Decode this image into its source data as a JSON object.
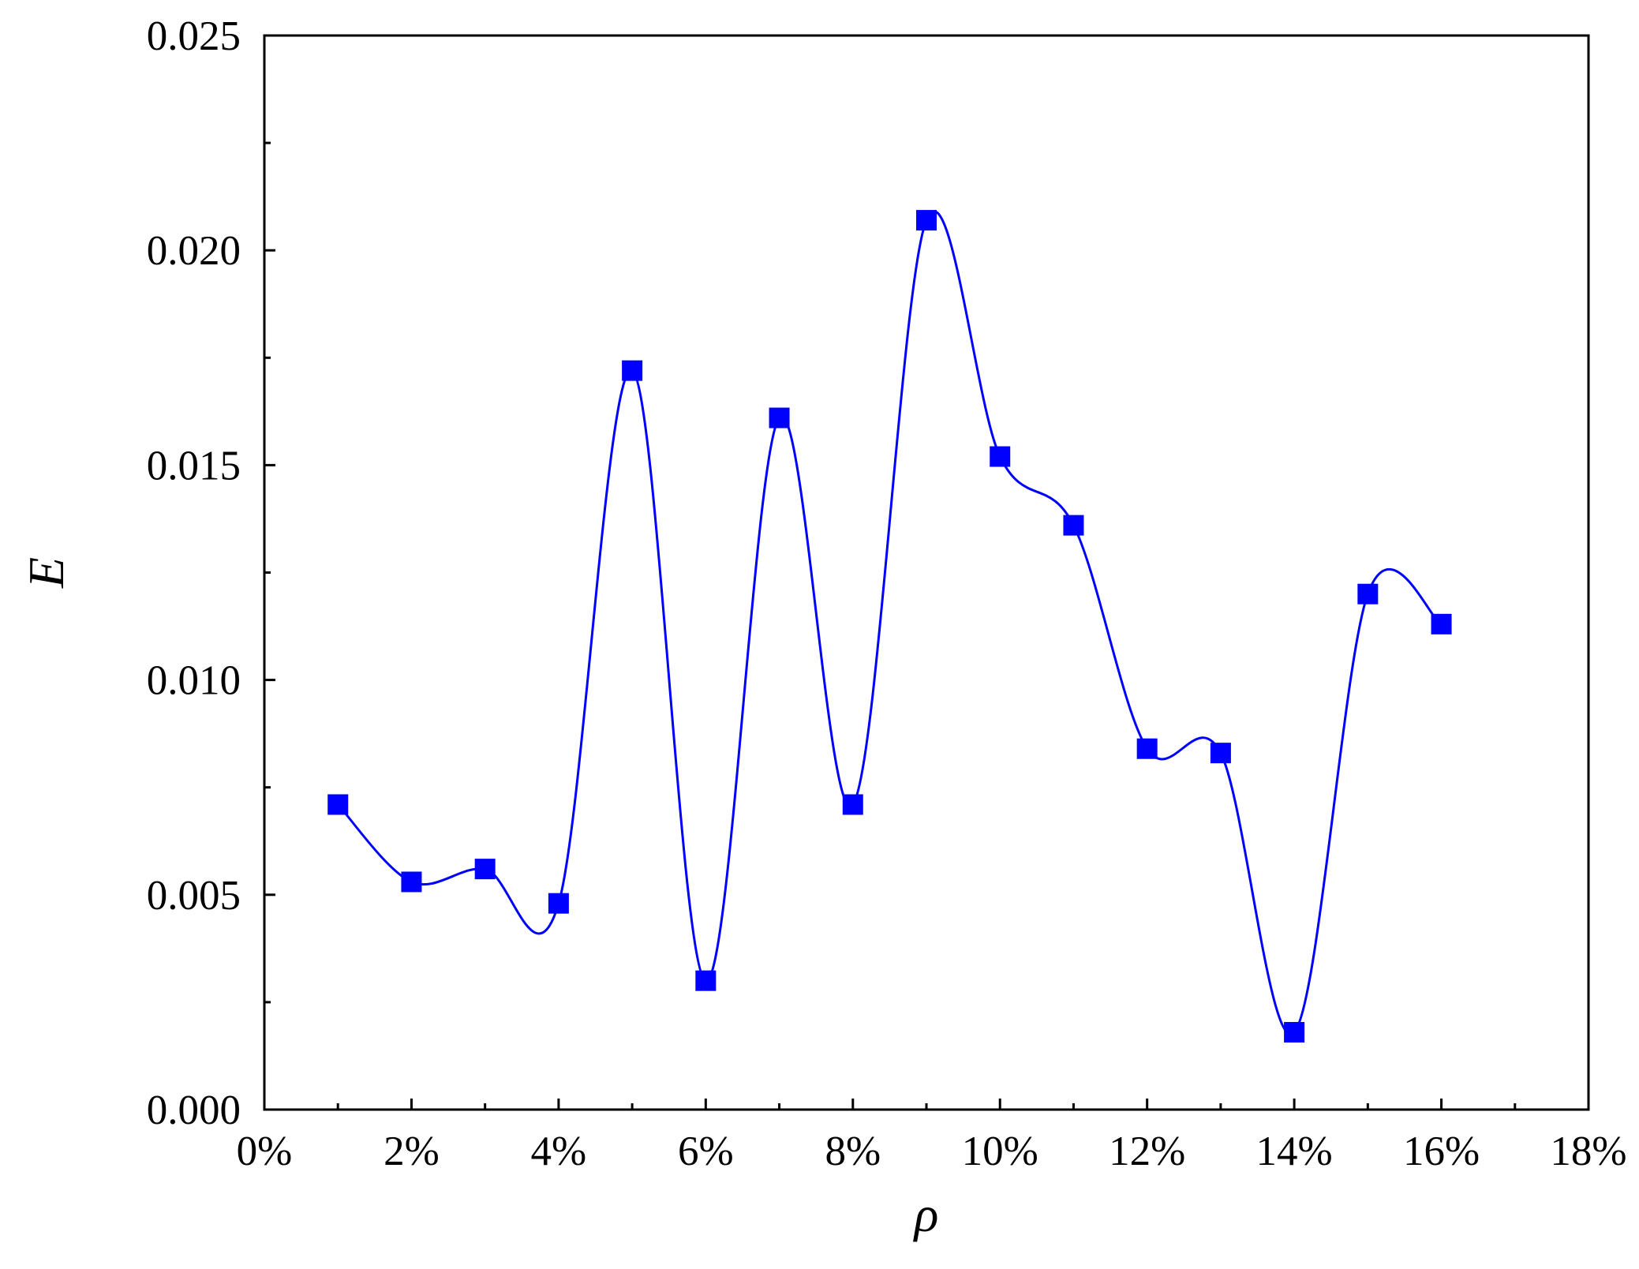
{
  "chart_data": {
    "type": "line",
    "xlabel": "ρ",
    "ylabel": "E",
    "xlim": [
      0,
      18
    ],
    "ylim": [
      0,
      0.025
    ],
    "x_ticks": [
      "0%",
      "2%",
      "4%",
      "6%",
      "8%",
      "10%",
      "12%",
      "14%",
      "16%",
      "18%"
    ],
    "y_ticks": [
      "0.000",
      "0.005",
      "0.010",
      "0.015",
      "0.020",
      "0.025"
    ],
    "grid": false,
    "series": [
      {
        "color": "#0000ff",
        "marker": "square",
        "smoothed": true,
        "x": [
          1,
          2,
          3,
          4,
          5,
          6,
          7,
          8,
          9,
          10,
          11,
          12,
          13,
          14,
          15,
          16
        ],
        "values": [
          0.0071,
          0.0053,
          0.0056,
          0.0048,
          0.0172,
          0.003,
          0.0161,
          0.0071,
          0.0207,
          0.0152,
          0.0136,
          0.0084,
          0.0083,
          0.0018,
          0.012,
          0.0113
        ]
      }
    ]
  }
}
